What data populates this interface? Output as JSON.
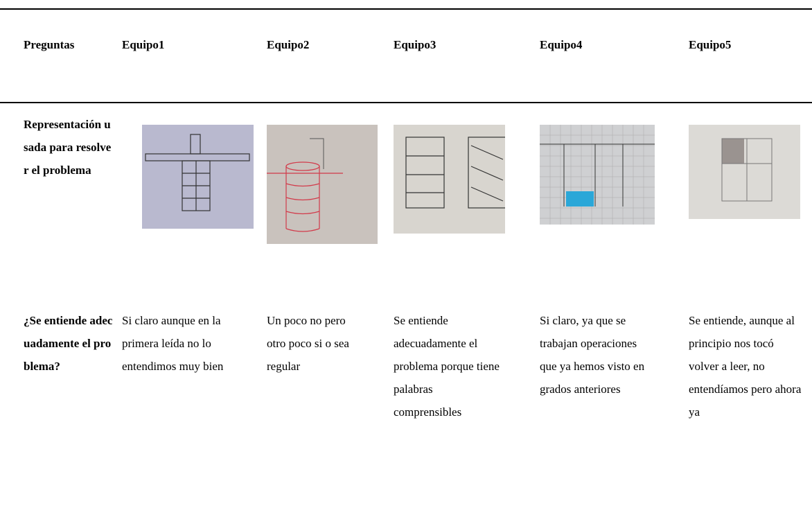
{
  "table": {
    "header": [
      "Preguntas",
      "Equipo1",
      "Equipo2",
      "Equipo3",
      "Equipo4",
      "Equipo5"
    ],
    "rows": [
      {
        "label": "Representación usada para resolver el problema"
      },
      {
        "label": "¿Se entiende adecuadamente el problema?",
        "cells": [
          "Si claro aunque en la primera leída no lo entendimos muy bien",
          "Un poco no pero otro poco si o sea regular",
          "Se entiende adecuadamente el problema porque tiene palabras comprensibles",
          "Si claro, ya que se trabajan operaciones que ya hemos visto en grados anteriores",
          "Se entiende, aunque al principio nos tocó volver a leer, no entendíamos pero ahora ya"
        ]
      }
    ]
  }
}
